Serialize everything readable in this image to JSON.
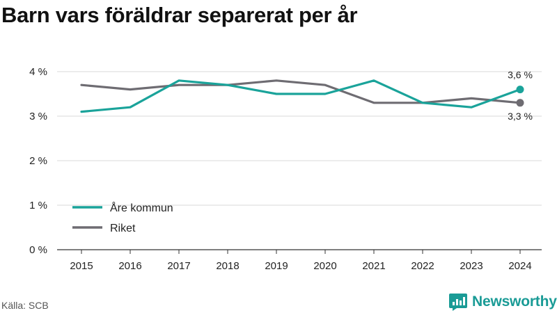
{
  "title": "Barn vars föräldrar separerat per år",
  "source": "Källa: SCB",
  "brand": "Newsworthy",
  "colors": {
    "are": "#1aa39a",
    "riket": "#6e6c72",
    "grid": "#d9d9d9",
    "axis": "#333333",
    "brand": "#1a9b96"
  },
  "chart_data": {
    "type": "line",
    "x": [
      "2015",
      "2016",
      "2017",
      "2018",
      "2019",
      "2020",
      "2021",
      "2022",
      "2023",
      "2024"
    ],
    "ylim": [
      0,
      4
    ],
    "yticks": [
      0,
      1,
      2,
      3,
      4
    ],
    "ytick_labels": [
      "0 %",
      "1 %",
      "2 %",
      "3 %",
      "4 %"
    ],
    "grid": true,
    "legend_position": "lower-left",
    "series": [
      {
        "name": "Åre kommun",
        "color": "#1aa39a",
        "values": [
          3.1,
          3.2,
          3.8,
          3.7,
          3.5,
          3.5,
          3.8,
          3.3,
          3.2,
          3.6
        ],
        "end_label": "3,6 %"
      },
      {
        "name": "Riket",
        "color": "#6e6c72",
        "values": [
          3.7,
          3.6,
          3.7,
          3.7,
          3.8,
          3.7,
          3.3,
          3.3,
          3.4,
          3.3
        ],
        "end_label": "3,3 %"
      }
    ]
  }
}
